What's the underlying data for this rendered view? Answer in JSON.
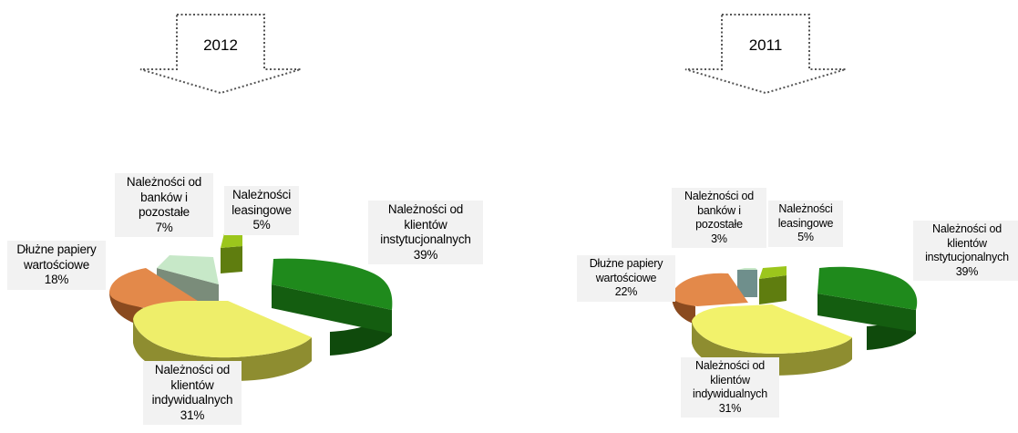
{
  "chart_data": [
    {
      "type": "pie",
      "title": "2012",
      "categories": [
        "Należności od klientów instytucjonalnych",
        "Należności od klientów indywidualnych",
        "Dłużne papiery wartościowe",
        "Należności od banków i pozostałe",
        "Należności leasingowe"
      ],
      "values": [
        39,
        31,
        18,
        7,
        5
      ],
      "labels": [
        "Należności od\nklientów\ninstytucjonalnych\n39%",
        "Należności od\nklientów\nindywidualnych\n31%",
        "Dłużne papiery\nwartościowe\n18%",
        "Należności od\nbanków i\npozostałe\n7%",
        "Należności\nleasingowe\n5%"
      ]
    },
    {
      "type": "pie",
      "title": "2011",
      "categories": [
        "Należności od klientów instytucjonalnych",
        "Należności od klientów indywidualnych",
        "Dłużne papiery wartościowe",
        "Należności od banków i pozostałe",
        "Należności leasingowe"
      ],
      "values": [
        39,
        31,
        22,
        3,
        5
      ],
      "labels": [
        "Należności od\nklientów\ninstytucjonalnych\n39%",
        "Należności od\nklientów\nindywidualnych\n31%",
        "Dłużne papiery\nwartościowe\n22%",
        "Należności od\nbanków i\npozostałe\n3%",
        "Należności\nleasingowe\n5%"
      ]
    }
  ],
  "colors": {
    "institutional": "#1f8a1c",
    "individual": "#f2f26b",
    "debt_securities": "#e3894a",
    "banks_other": "#c7e8c8",
    "leasing": "#9cc61c"
  }
}
